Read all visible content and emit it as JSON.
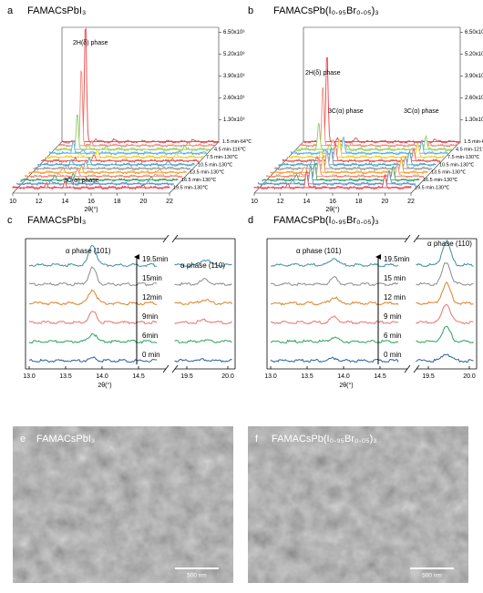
{
  "panels": [
    {
      "letter": "a",
      "title": "FAMACsPbI₃",
      "z_ticks": [
        "1.30x10³",
        "2.60x10³",
        "3.90x10³",
        "5.20x10³",
        "6.50x10³"
      ],
      "x_ticks": [
        "10",
        "12",
        "14",
        "16",
        "18",
        "20",
        "22"
      ],
      "x_label": "2θ(°)",
      "annotations": [
        "2H(δ) phase",
        "3C(α) phase"
      ],
      "series_labels": [
        "1.5 min-64℃",
        "4.5 min-116℃",
        "7.5 min-130℃",
        "10.5 min-130℃",
        "13.5 min-130℃",
        "16.5 min-130℃",
        "19.5 min-130℃"
      ]
    },
    {
      "letter": "b",
      "title": "FAMACsPb(I₀.₉₅Br₀.₀₅)₃",
      "z_ticks": [
        "1.30x10³",
        "2.60x10³",
        "3.90x10³",
        "5.20x10³",
        "6.50x10³"
      ],
      "x_ticks": [
        "10",
        "12",
        "14",
        "16",
        "18",
        "20",
        "22"
      ],
      "x_label": "2θ(°)",
      "annotations": [
        "2H(δ) phase",
        "3C(α) phase",
        "3C(α) phase"
      ],
      "series_labels": [
        "1.5 min-64℃",
        "4.5 min-121℃",
        "7.5 min-130℃",
        "10.5 min-130℃",
        "13.5 min-130℃",
        "16.5 min-130℃",
        "19.5 min-130℃"
      ]
    },
    {
      "letter": "c",
      "title": "FAMACsPbI₃",
      "x_ticks": [
        "13.0",
        "13.5",
        "14.0",
        "14.5",
        "19.5",
        "20.0"
      ],
      "x_label": "2θ(°)",
      "annotations": [
        "α phase (101)",
        "α phase (110)"
      ],
      "series_labels": [
        "0 min",
        "6min",
        "9min",
        "12min",
        "15min",
        "19.5min"
      ]
    },
    {
      "letter": "d",
      "title": "FAMACsPb(I₀.₉₅Br₀.₀₅)₃",
      "x_ticks": [
        "13.0",
        "13.5",
        "14.0",
        "14.5",
        "19.5",
        "20.0"
      ],
      "x_label": "2θ(°)",
      "annotations": [
        "α phase (101)",
        "α phase (110)"
      ],
      "series_labels": [
        "0 min",
        "6 min",
        "9 min",
        "12 min",
        "15 min",
        "19.5min"
      ]
    },
    {
      "letter": "e",
      "title": "FAMACsPbI₃",
      "scale_bar": "500 nm"
    },
    {
      "letter": "f",
      "title": "FAMACsPb(I₀.₉₅Br₀.₀₅)₃",
      "scale_bar": "500 nm"
    }
  ]
}
